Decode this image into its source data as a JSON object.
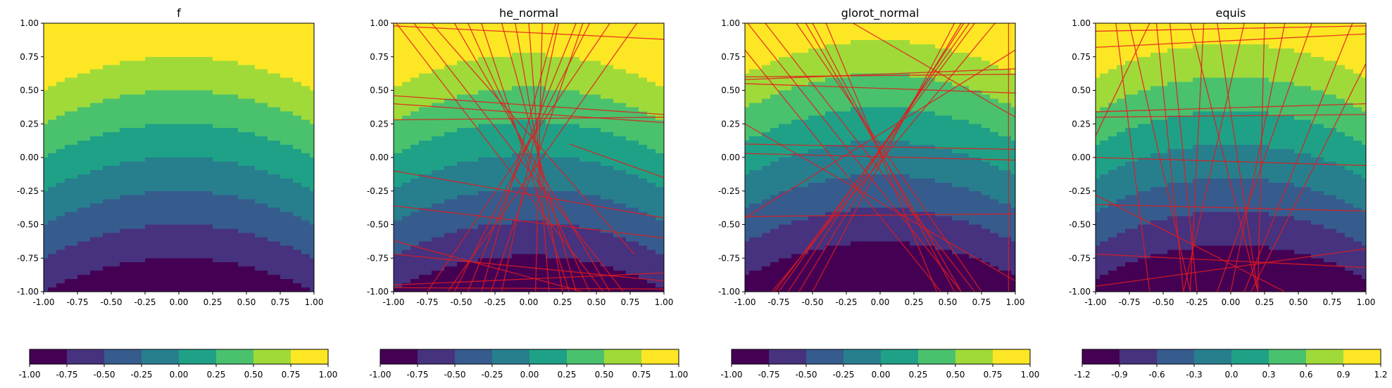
{
  "chart_data": [
    {
      "type": "contour",
      "title": "f",
      "x_ticks": [
        "-1.00",
        "-0.75",
        "-0.50",
        "-0.25",
        "0.00",
        "0.25",
        "0.50",
        "0.75",
        "1.00"
      ],
      "y_ticks": [
        "1.00",
        "0.75",
        "0.50",
        "0.25",
        "0.00",
        "-0.25",
        "-0.50",
        "-0.75",
        "-1.00"
      ],
      "xlim": [
        -1,
        1
      ],
      "ylim": [
        -1,
        1
      ],
      "contour_center_y": 0,
      "contour_offset_max": 0,
      "contour_levels": [
        -1,
        -0.75,
        -0.5,
        -0.25,
        0,
        0.25,
        0.5,
        0.75,
        1
      ],
      "colorbar": {
        "ticks": [
          "-1.00",
          "-0.75",
          "-0.50",
          "-0.25",
          "0.00",
          "0.25",
          "0.50",
          "0.75",
          "1.00"
        ],
        "levels": [
          -1,
          -0.75,
          -0.5,
          -0.25,
          0,
          0.25,
          0.5,
          0.75,
          1
        ]
      },
      "colors": [
        "#440154",
        "#46327e",
        "#365c8d",
        "#277f8e",
        "#1fa187",
        "#4ac16d",
        "#a0da39",
        "#fde725"
      ],
      "lines": []
    },
    {
      "type": "contour",
      "title": "he_normal",
      "x_ticks": [
        "-1.00",
        "-0.75",
        "-0.50",
        "-0.25",
        "0.00",
        "0.25",
        "0.50",
        "0.75",
        "1.00"
      ],
      "y_ticks": [
        "1.00",
        "0.75",
        "0.50",
        "0.25",
        "0.00",
        "-0.25",
        "-0.50",
        "-0.75",
        "-1.00"
      ],
      "xlim": [
        -1,
        1
      ],
      "ylim": [
        -1,
        1
      ],
      "contour_center_y": 0.02,
      "contour_offset_max": 0,
      "contour_levels": [
        -1,
        -0.75,
        -0.5,
        -0.25,
        0,
        0.25,
        0.5,
        0.75,
        1
      ],
      "colorbar": {
        "ticks": [
          "-1.00",
          "-0.75",
          "-0.50",
          "-0.25",
          "0.00",
          "0.25",
          "0.50",
          "0.75",
          "1.00"
        ],
        "levels": [
          -1,
          -0.75,
          -0.5,
          -0.25,
          0,
          0.25,
          0.5,
          0.75,
          1
        ]
      },
      "colors": [
        "#440154",
        "#46327e",
        "#365c8d",
        "#277f8e",
        "#1fa187",
        "#4ac16d",
        "#a0da39",
        "#fde725"
      ],
      "lines": [
        [
          [
            -1.0,
            0.98
          ],
          [
            1.0,
            0.88
          ]
        ],
        [
          [
            -1.0,
            0.46
          ],
          [
            1.0,
            0.32
          ]
        ],
        [
          [
            -1.0,
            0.4
          ],
          [
            1.0,
            0.26
          ]
        ],
        [
          [
            -1.0,
            0.28
          ],
          [
            1.0,
            0.3
          ]
        ],
        [
          [
            -1.0,
            -0.36
          ],
          [
            1.0,
            -0.6
          ]
        ],
        [
          [
            -1.0,
            -0.72
          ],
          [
            1.0,
            -0.92
          ]
        ],
        [
          [
            -1.0,
            -0.95
          ],
          [
            1.0,
            -0.86
          ]
        ],
        [
          [
            -1.0,
            -0.97
          ],
          [
            1.0,
            -0.98
          ]
        ],
        [
          [
            -0.98,
            1.0
          ],
          [
            0.55,
            -1.0
          ]
        ],
        [
          [
            -0.85,
            1.0
          ],
          [
            0.7,
            -1.0
          ]
        ],
        [
          [
            -0.72,
            1.0
          ],
          [
            0.78,
            -0.72
          ]
        ],
        [
          [
            -0.55,
            1.0
          ],
          [
            0.6,
            -1.0
          ]
        ],
        [
          [
            -0.45,
            1.0
          ],
          [
            0.45,
            -1.0
          ]
        ],
        [
          [
            -0.35,
            1.0
          ],
          [
            0.3,
            -1.0
          ]
        ],
        [
          [
            -0.2,
            1.0
          ],
          [
            0.35,
            -1.0
          ]
        ],
        [
          [
            -0.1,
            1.0
          ],
          [
            0.25,
            -1.0
          ]
        ],
        [
          [
            0.2,
            1.0
          ],
          [
            -0.35,
            -1.0
          ]
        ],
        [
          [
            0.22,
            1.0
          ],
          [
            -0.2,
            -1.0
          ]
        ],
        [
          [
            0.35,
            1.0
          ],
          [
            -0.45,
            -1.0
          ]
        ],
        [
          [
            0.4,
            1.0
          ],
          [
            -0.28,
            -1.0
          ]
        ],
        [
          [
            0.45,
            1.0
          ],
          [
            -0.55,
            -1.0
          ]
        ],
        [
          [
            0.6,
            1.0
          ],
          [
            -0.75,
            -1.0
          ]
        ],
        [
          [
            0.8,
            1.0
          ],
          [
            -0.6,
            -1.0
          ]
        ],
        [
          [
            0.0,
            1.0
          ],
          [
            0.15,
            -1.0
          ]
        ],
        [
          [
            0.1,
            1.0
          ],
          [
            0.05,
            -1.0
          ]
        ],
        [
          [
            -1.0,
            -0.1
          ],
          [
            1.0,
            -0.45
          ]
        ],
        [
          [
            -1.0,
            -0.62
          ],
          [
            0.4,
            -1.0
          ]
        ],
        [
          [
            0.3,
            0.1
          ],
          [
            1.0,
            -0.15
          ]
        ]
      ]
    },
    {
      "type": "contour",
      "title": "glorot_normal",
      "x_ticks": [
        "-1.00",
        "-0.75",
        "-0.50",
        "-0.25",
        "0.00",
        "0.25",
        "0.50",
        "0.75",
        "1.00"
      ],
      "y_ticks": [
        "1.00",
        "0.75",
        "0.50",
        "0.25",
        "0.00",
        "-0.25",
        "-0.50",
        "-0.75",
        "-1.00"
      ],
      "xlim": [
        -1,
        1
      ],
      "ylim": [
        -1,
        1
      ],
      "contour_center_y": 0.12,
      "contour_offset_max": 0,
      "contour_levels": [
        -1,
        -0.75,
        -0.5,
        -0.25,
        0,
        0.25,
        0.5,
        0.75,
        1
      ],
      "colorbar": {
        "ticks": [
          "-1.00",
          "-0.75",
          "-0.50",
          "-0.25",
          "0.00",
          "0.25",
          "0.50",
          "0.75",
          "1.00"
        ],
        "levels": [
          -1,
          -0.75,
          -0.5,
          -0.25,
          0,
          0.25,
          0.5,
          0.75,
          1
        ]
      },
      "colors": [
        "#440154",
        "#46327e",
        "#365c8d",
        "#277f8e",
        "#1fa187",
        "#4ac16d",
        "#a0da39",
        "#fde725"
      ],
      "lines": [
        [
          [
            -1.0,
            0.58
          ],
          [
            1.0,
            0.66
          ]
        ],
        [
          [
            -1.0,
            0.6
          ],
          [
            1.0,
            0.62
          ]
        ],
        [
          [
            -1.0,
            0.1
          ],
          [
            1.0,
            0.06
          ]
        ],
        [
          [
            -1.0,
            0.03
          ],
          [
            1.0,
            -0.02
          ]
        ],
        [
          [
            -1.0,
            -0.44
          ],
          [
            1.0,
            -0.42
          ]
        ],
        [
          [
            -1.0,
            -0.45
          ],
          [
            1.0,
            0.8
          ]
        ],
        [
          [
            -1.0,
            0.25
          ],
          [
            1.0,
            -0.92
          ]
        ],
        [
          [
            -1.0,
            0.8
          ],
          [
            0.45,
            -1.0
          ]
        ],
        [
          [
            -0.98,
            1.0
          ],
          [
            0.6,
            -1.0
          ]
        ],
        [
          [
            -0.85,
            1.0
          ],
          [
            0.7,
            -1.0
          ]
        ],
        [
          [
            -0.62,
            1.0
          ],
          [
            0.75,
            -1.0
          ]
        ],
        [
          [
            -0.55,
            1.0
          ],
          [
            0.6,
            -1.0
          ]
        ],
        [
          [
            -0.5,
            1.0
          ],
          [
            0.55,
            -1.0
          ]
        ],
        [
          [
            -0.4,
            1.0
          ],
          [
            0.42,
            -1.0
          ]
        ],
        [
          [
            0.55,
            1.0
          ],
          [
            -0.5,
            -1.0
          ]
        ],
        [
          [
            0.6,
            1.0
          ],
          [
            -0.6,
            -1.0
          ]
        ],
        [
          [
            0.62,
            1.0
          ],
          [
            -0.68,
            -1.0
          ]
        ],
        [
          [
            0.66,
            1.0
          ],
          [
            -0.75,
            -1.0
          ]
        ],
        [
          [
            0.7,
            1.0
          ],
          [
            -0.78,
            -1.0
          ]
        ],
        [
          [
            0.85,
            1.0
          ],
          [
            -0.8,
            -1.0
          ]
        ],
        [
          [
            0.95,
            1.0
          ],
          [
            0.95,
            -1.0
          ]
        ],
        [
          [
            -0.2,
            1.0
          ],
          [
            1.0,
            0.3
          ]
        ],
        [
          [
            -1.0,
            0.55
          ],
          [
            1.0,
            0.48
          ]
        ]
      ]
    },
    {
      "type": "contour",
      "title": "equis",
      "x_ticks": [
        "-1.00",
        "-0.75",
        "-0.50",
        "-0.25",
        "0.00",
        "0.25",
        "0.50",
        "0.75",
        "1.00"
      ],
      "y_ticks": [
        "1.00",
        "0.75",
        "0.50",
        "0.25",
        "0.00",
        "-0.25",
        "-0.50",
        "-0.75",
        "-1.00"
      ],
      "xlim": [
        -1,
        1
      ],
      "ylim": [
        -1,
        1
      ],
      "contour_center_y": 0.1,
      "contour_offset_max": 0.2,
      "contour_levels": [
        -1.2,
        -0.9,
        -0.6,
        -0.3,
        0,
        0.3,
        0.6,
        0.9,
        1.2
      ],
      "colorbar": {
        "ticks": [
          "-1.2",
          "-0.9",
          "-0.6",
          "-0.3",
          "0.0",
          "0.3",
          "0.6",
          "0.9",
          "1.2"
        ],
        "levels": [
          -1.2,
          -0.9,
          -0.6,
          -0.3,
          0,
          0.3,
          0.6,
          0.9,
          1.2
        ]
      },
      "colors": [
        "#440154",
        "#46327e",
        "#365c8d",
        "#277f8e",
        "#1fa187",
        "#4ac16d",
        "#a0da39",
        "#fde725"
      ],
      "lines": [
        [
          [
            -1.0,
            0.94
          ],
          [
            1.0,
            0.98
          ]
        ],
        [
          [
            -1.0,
            0.82
          ],
          [
            1.0,
            0.92
          ]
        ],
        [
          [
            -1.0,
            0.34
          ],
          [
            1.0,
            0.4
          ]
        ],
        [
          [
            -1.0,
            0.3
          ],
          [
            1.0,
            0.32
          ]
        ],
        [
          [
            -1.0,
            0.0
          ],
          [
            1.0,
            -0.06
          ]
        ],
        [
          [
            -1.0,
            -0.28
          ],
          [
            0.4,
            -1.0
          ]
        ],
        [
          [
            -1.0,
            -0.35
          ],
          [
            1.0,
            -0.4
          ]
        ],
        [
          [
            -1.0,
            -0.72
          ],
          [
            1.0,
            -0.82
          ]
        ],
        [
          [
            -1.0,
            -0.96
          ],
          [
            1.0,
            -0.68
          ]
        ],
        [
          [
            -1.0,
            0.16
          ],
          [
            -0.6,
            1.0
          ]
        ],
        [
          [
            -0.85,
            1.0
          ],
          [
            -0.6,
            -1.0
          ]
        ],
        [
          [
            -0.75,
            1.0
          ],
          [
            -0.3,
            -1.0
          ]
        ],
        [
          [
            -0.55,
            1.0
          ],
          [
            -0.35,
            -1.0
          ]
        ],
        [
          [
            -0.45,
            1.0
          ],
          [
            -0.25,
            -1.0
          ]
        ],
        [
          [
            -0.2,
            1.0
          ],
          [
            -0.3,
            -1.0
          ]
        ],
        [
          [
            -0.3,
            1.0
          ],
          [
            0.2,
            -1.0
          ]
        ],
        [
          [
            -0.1,
            1.0
          ],
          [
            0.2,
            -1.0
          ]
        ],
        [
          [
            0.1,
            1.0
          ],
          [
            -0.35,
            -1.0
          ]
        ],
        [
          [
            0.25,
            1.0
          ],
          [
            0.2,
            -1.0
          ]
        ],
        [
          [
            0.4,
            1.0
          ],
          [
            0.0,
            -1.0
          ]
        ],
        [
          [
            0.6,
            1.0
          ],
          [
            -0.1,
            -1.0
          ]
        ],
        [
          [
            0.9,
            1.0
          ],
          [
            0.1,
            -1.0
          ]
        ],
        [
          [
            1.0,
            0.7
          ],
          [
            0.15,
            -1.0
          ]
        ],
        [
          [
            -0.2,
            -1.0
          ],
          [
            0.3,
            -1.0
          ]
        ]
      ]
    }
  ]
}
